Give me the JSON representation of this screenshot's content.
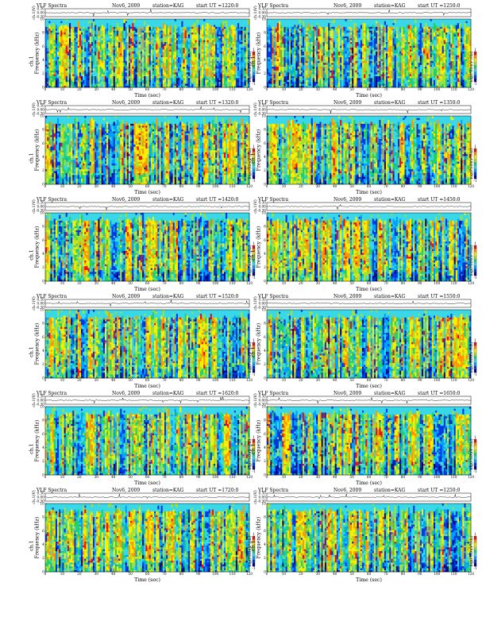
{
  "figure": {
    "colors": {
      "scale": [
        "#08088c",
        "#0038e0",
        "#00a0ff",
        "#38d8e8",
        "#20d070",
        "#a8e030",
        "#f8f000",
        "#ff9800",
        "#e81010"
      ],
      "text": "#000000",
      "trace": "#000000"
    },
    "panels": [
      {
        "title": "VLF Spectra",
        "date": "Nov6, 2009",
        "station": "station=KAG",
        "start": "start  UT =1220:0"
      },
      {
        "title": "VLF Spectra",
        "date": "Nov6, 2009",
        "station": "station=KAG",
        "start": "start  UT =1250:0"
      },
      {
        "title": "VLF Spectra",
        "date": "Nov6, 2009",
        "station": "station=KAG",
        "start": "start  UT =1320:0"
      },
      {
        "title": "VLF Spectra",
        "date": "Nov6, 2009",
        "station": "station=KAG",
        "start": "start  UT =1350:0"
      },
      {
        "title": "VLF Spectra",
        "date": "Nov6, 2009",
        "station": "station=KAG",
        "start": "start  UT =1420:0"
      },
      {
        "title": "VLF Spectra",
        "date": "Nov6, 2009",
        "station": "station=KAG",
        "start": "start  UT =1450:0"
      },
      {
        "title": "VLF Spectra",
        "date": "Nov6, 2009",
        "station": "station=KAG",
        "start": "start  UT =1520:0"
      },
      {
        "title": "VLF Spectra",
        "date": "Nov6, 2009",
        "station": "station=KAG",
        "start": "start  UT =1550:0"
      },
      {
        "title": "VLF Spectra",
        "date": "Nov6, 2009",
        "station": "station=KAG",
        "start": "start  UT =1620:0"
      },
      {
        "title": "VLF Spectra",
        "date": "Nov6, 2009",
        "station": "station=KAG",
        "start": "start  UT =1650:0"
      },
      {
        "title": "VLF Spectra",
        "date": "Nov6, 2009",
        "station": "station=KAG",
        "start": "start  UT =1720:0"
      },
      {
        "title": "VLF Spectra",
        "date": "Nov6, 2009",
        "station": "station=KAG",
        "start": "start  UT =1250:0"
      }
    ]
  },
  "chart_data": {
    "type": "heatmap",
    "panel_count": 12,
    "grid_columns": 2,
    "trace": {
      "ylabel": "ch.1(V)",
      "ylim": [
        -0.3,
        0.3
      ],
      "ticks": [
        "0.30",
        "0.00",
        "-0.30"
      ]
    },
    "spectrogram": {
      "channel_label": "ch.1",
      "ylabel": "Frequency  (kHz)",
      "xlabel": "Time  (sec)",
      "xlim": [
        0,
        120
      ],
      "ylim": [
        0,
        10
      ],
      "x_ticks": [
        "0",
        "10",
        "20",
        "30",
        "40",
        "50",
        "60",
        "70",
        "80",
        "90",
        "100",
        "110",
        "120"
      ],
      "y_ticks": [
        "0",
        "2",
        "4",
        "6",
        "8",
        "10"
      ]
    },
    "colorbar": {
      "label": "log(PSD)(V²/Hz)",
      "range": [
        -1,
        1
      ],
      "ticks": [
        "1",
        "-1"
      ]
    }
  }
}
